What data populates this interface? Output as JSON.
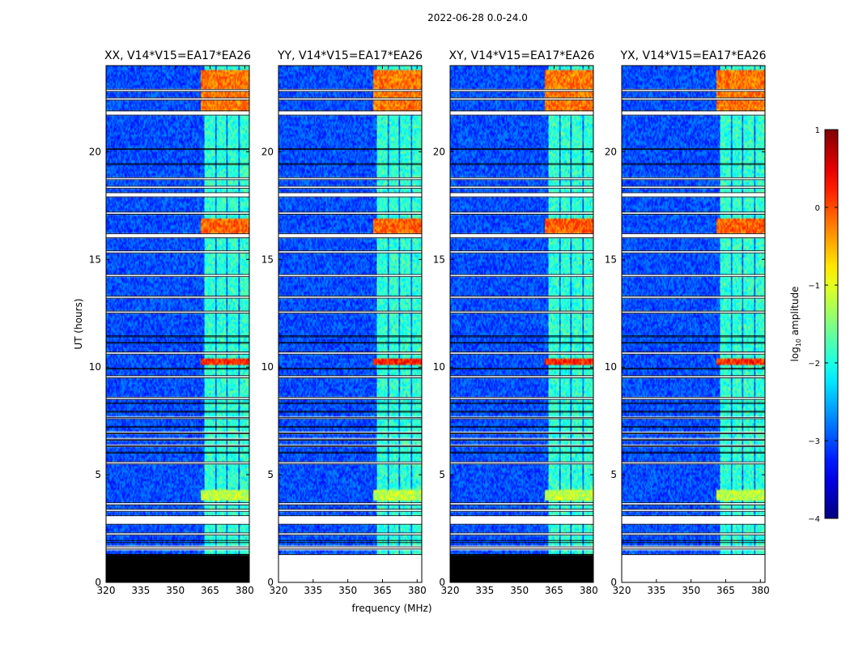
{
  "figure_title": "2022-06-28 0.0-24.0",
  "chart_data": {
    "type": "heatmap",
    "title": "2022-06-28 0.0-24.0",
    "xlabel": "frequency (MHz)",
    "ylabel": "UT (hours)",
    "xlim": [
      320,
      382
    ],
    "ylim": [
      0,
      24
    ],
    "xticks": [
      320,
      335,
      350,
      365,
      380
    ],
    "yticks": [
      0,
      5,
      10,
      15,
      20
    ],
    "colorbar": {
      "label_main": "log",
      "label_sub": "10",
      "label_rest": " amplitude",
      "range": [
        -4,
        1
      ],
      "ticks": [
        "1",
        "0",
        "−1",
        "−2",
        "−3",
        "−4"
      ],
      "colormap": "jet"
    },
    "panels": [
      {
        "title": "XX, V14*V15=EA17*EA26",
        "show_xlabel": false
      },
      {
        "title": "YY, V14*V15=EA17*EA26",
        "show_xlabel": true
      },
      {
        "title": "XY, V14*V15=EA17*EA26",
        "show_xlabel": false
      },
      {
        "title": "YX, V14*V15=EA17*EA26",
        "show_xlabel": false
      }
    ],
    "flagged_bands_ut": [
      [
        0.0,
        1.3
      ],
      [
        1.55,
        1.65
      ],
      [
        1.85,
        1.95
      ],
      [
        2.2,
        2.3
      ],
      [
        2.7,
        3.1
      ],
      [
        3.3,
        3.4
      ],
      [
        3.6,
        3.7
      ],
      [
        5.5,
        5.6
      ],
      [
        6.0,
        6.05
      ],
      [
        6.3,
        6.35
      ],
      [
        6.6,
        6.65
      ],
      [
        6.9,
        6.95
      ],
      [
        7.2,
        7.25
      ],
      [
        7.6,
        7.65
      ],
      [
        7.9,
        7.95
      ],
      [
        8.3,
        8.35
      ],
      [
        8.5,
        8.6
      ],
      [
        9.5,
        9.6
      ],
      [
        9.9,
        9.95
      ],
      [
        10.6,
        10.7
      ],
      [
        11.1,
        11.15
      ],
      [
        11.4,
        11.45
      ],
      [
        12.5,
        12.6
      ],
      [
        13.2,
        13.3
      ],
      [
        14.2,
        14.3
      ],
      [
        15.3,
        15.4
      ],
      [
        16.0,
        16.2
      ],
      [
        17.1,
        17.2
      ],
      [
        17.9,
        18.1
      ],
      [
        18.3,
        18.4
      ],
      [
        18.7,
        18.8
      ],
      [
        19.4,
        19.45
      ],
      [
        20.1,
        20.15
      ],
      [
        21.7,
        21.9
      ],
      [
        22.4,
        22.5
      ],
      [
        22.8,
        22.9
      ]
    ],
    "bright_bins_mhz": [
      365,
      370,
      375,
      380
    ],
    "rfi_events_ut": [
      [
        10.1,
        10.4,
        0.4
      ],
      [
        16.2,
        16.9,
        0.1
      ],
      [
        21.9,
        23.8,
        0.0
      ],
      [
        3.8,
        4.3,
        -1.0
      ]
    ],
    "background_level": -3.0
  }
}
